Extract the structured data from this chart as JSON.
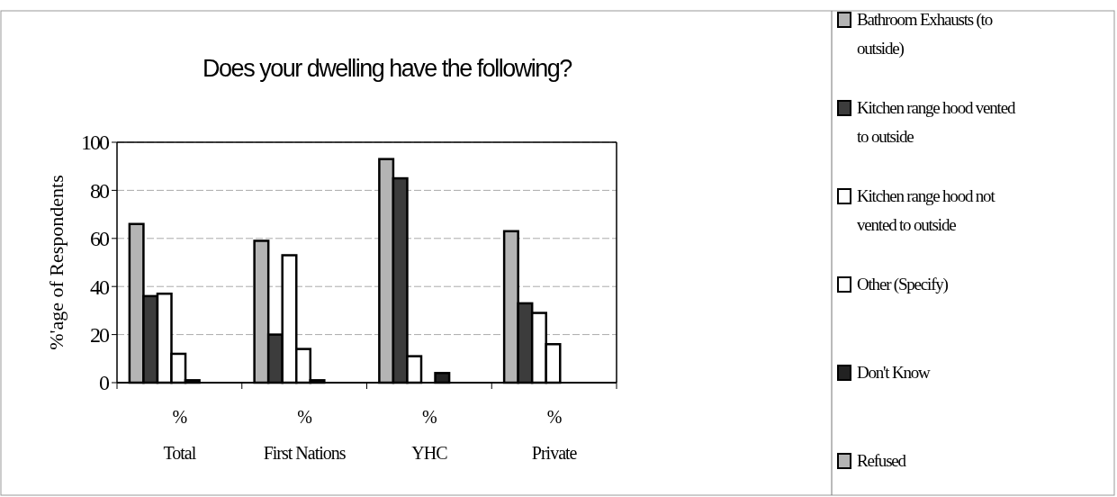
{
  "chart_data": {
    "type": "bar",
    "title": "Does your dwelling have the following?",
    "ylabel": "%'age of Respondents",
    "categories": [
      "%\nTotal",
      "%\nFirst Nations",
      "%\nYHC",
      "%\nPrivate"
    ],
    "series": [
      {
        "name": "Bathroom Exhausts (to outside)",
        "color": "#b4b4b4",
        "values": [
          66,
          59,
          93,
          63
        ]
      },
      {
        "name": "Kitchen range hood vented to outside",
        "color": "#3c3c3c",
        "values": [
          36,
          20,
          85,
          33
        ]
      },
      {
        "name": "Kitchen range hood not vented to outside",
        "color": "#ffffff",
        "values": [
          37,
          53,
          11,
          29
        ]
      },
      {
        "name": "Other (Specify)",
        "color": "#ffffff",
        "values": [
          12,
          14,
          0,
          16
        ]
      },
      {
        "name": "Don't Know",
        "color": "#222222",
        "values": [
          1,
          1,
          4,
          0
        ]
      },
      {
        "name": "Refused",
        "color": "#b4b4b4",
        "values": [
          0,
          0,
          0,
          0
        ]
      }
    ],
    "ylim": [
      0,
      100
    ],
    "yticks": [
      0,
      20,
      40,
      60,
      80,
      100
    ],
    "grid": "y",
    "legend": "right"
  }
}
